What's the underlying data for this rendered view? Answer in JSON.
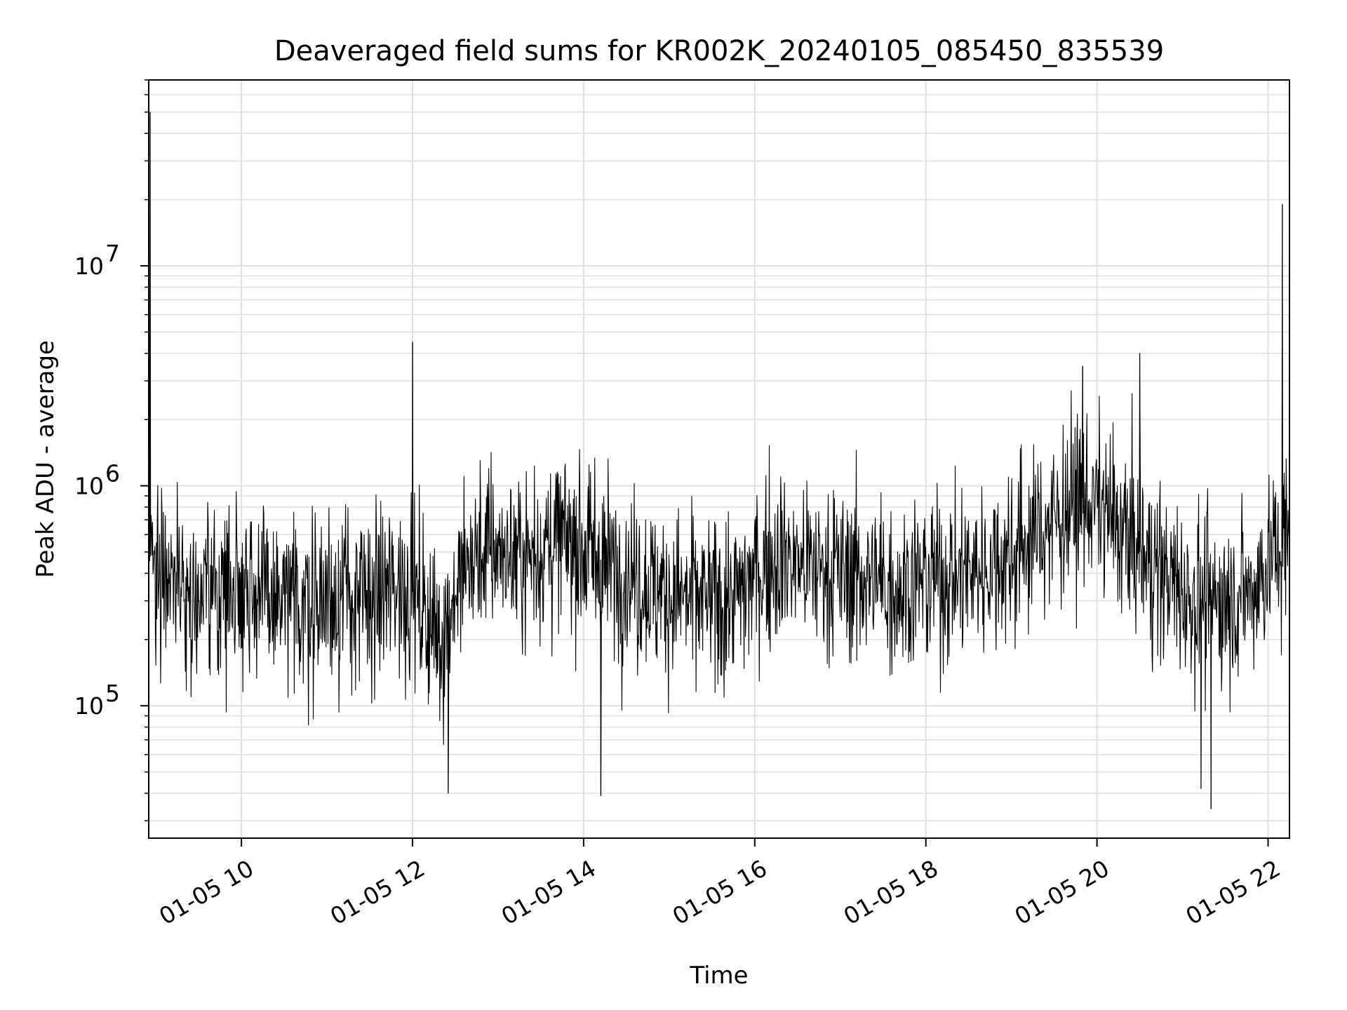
{
  "chart_data": {
    "type": "line",
    "title": "Deaveraged field sums for KR002K_20240105_085450_835539",
    "xlabel": "Time",
    "ylabel": "Peak ADU - average",
    "x_scale": "time",
    "y_scale": "log",
    "xlim": [
      "2024-01-05 08:55",
      "2024-01-05 22:15"
    ],
    "ylim": [
      25000,
      70000000
    ],
    "x_ticks": [
      "2024-01-05 10:00",
      "2024-01-05 12:00",
      "2024-01-05 14:00",
      "2024-01-05 16:00",
      "2024-01-05 18:00",
      "2024-01-05 20:00",
      "2024-01-05 22:00"
    ],
    "x_tick_labels": [
      "01-05 10",
      "01-05 12",
      "01-05 14",
      "01-05 16",
      "01-05 18",
      "01-05 20",
      "01-05 22"
    ],
    "y_ticks": [
      100000,
      1000000,
      10000000
    ],
    "y_tick_labels": [
      {
        "base": "10",
        "exp": "5"
      },
      {
        "base": "10",
        "exp": "6"
      },
      {
        "base": "10",
        "exp": "7"
      }
    ],
    "grid": true,
    "legend": "none",
    "line_color": "#000000",
    "grid_color": "#e0e0e0",
    "series": [
      {
        "x": [
          "2024-01-05 08:55",
          "2024-01-05 09:00",
          "2024-01-05 09:10",
          "2024-01-05 09:20",
          "2024-01-05 09:30",
          "2024-01-05 09:40",
          "2024-01-05 09:50",
          "2024-01-05 10:00",
          "2024-01-05 10:10",
          "2024-01-05 10:20",
          "2024-01-05 10:30",
          "2024-01-05 10:40",
          "2024-01-05 10:50",
          "2024-01-05 11:00",
          "2024-01-05 11:10",
          "2024-01-05 11:20",
          "2024-01-05 11:30",
          "2024-01-05 11:40",
          "2024-01-05 11:50",
          "2024-01-05 12:00",
          "2024-01-05 12:10",
          "2024-01-05 12:20",
          "2024-01-05 12:30",
          "2024-01-05 12:40",
          "2024-01-05 12:50",
          "2024-01-05 13:00",
          "2024-01-05 13:10",
          "2024-01-05 13:20",
          "2024-01-05 13:30",
          "2024-01-05 13:40",
          "2024-01-05 13:50",
          "2024-01-05 14:00",
          "2024-01-05 14:10",
          "2024-01-05 14:20",
          "2024-01-05 14:30",
          "2024-01-05 14:40",
          "2024-01-05 14:50",
          "2024-01-05 15:00",
          "2024-01-05 15:10",
          "2024-01-05 15:20",
          "2024-01-05 15:30",
          "2024-01-05 15:40",
          "2024-01-05 15:50",
          "2024-01-05 16:00",
          "2024-01-05 16:10",
          "2024-01-05 16:20",
          "2024-01-05 16:30",
          "2024-01-05 16:40",
          "2024-01-05 16:50",
          "2024-01-05 17:00",
          "2024-01-05 17:10",
          "2024-01-05 17:20",
          "2024-01-05 17:30",
          "2024-01-05 17:40",
          "2024-01-05 17:50",
          "2024-01-05 18:00",
          "2024-01-05 18:10",
          "2024-01-05 18:20",
          "2024-01-05 18:30",
          "2024-01-05 18:40",
          "2024-01-05 18:50",
          "2024-01-05 19:00",
          "2024-01-05 19:10",
          "2024-01-05 19:20",
          "2024-01-05 19:30",
          "2024-01-05 19:40",
          "2024-01-05 19:50",
          "2024-01-05 20:00",
          "2024-01-05 20:10",
          "2024-01-05 20:20",
          "2024-01-05 20:30",
          "2024-01-05 20:40",
          "2024-01-05 20:50",
          "2024-01-05 21:00",
          "2024-01-05 21:10",
          "2024-01-05 21:20",
          "2024-01-05 21:30",
          "2024-01-05 21:40",
          "2024-01-05 21:50",
          "2024-01-05 22:00",
          "2024-01-05 22:10",
          "2024-01-05 22:15"
        ],
        "y": [
          500000,
          450000,
          420000,
          350000,
          300000,
          330000,
          350000,
          380000,
          340000,
          300000,
          280000,
          290000,
          300000,
          310000,
          320000,
          300000,
          290000,
          330000,
          360000,
          330000,
          250000,
          200000,
          330000,
          450000,
          500000,
          520000,
          480000,
          470000,
          520000,
          550000,
          560000,
          520000,
          470000,
          430000,
          400000,
          370000,
          340000,
          320000,
          310000,
          300000,
          290000,
          300000,
          320000,
          400000,
          460000,
          480000,
          450000,
          430000,
          420000,
          400000,
          390000,
          380000,
          360000,
          350000,
          360000,
          370000,
          380000,
          390000,
          400000,
          420000,
          450000,
          500000,
          550000,
          620000,
          700000,
          800000,
          880000,
          820000,
          700000,
          600000,
          500000,
          430000,
          380000,
          330000,
          310000,
          300000,
          310000,
          320000,
          340000,
          450000,
          520000,
          550000
        ],
        "spikes": [
          {
            "x": "2024-01-05 08:56",
            "y": 50000000
          },
          {
            "x": "2024-01-05 12:00",
            "y": 4500000
          },
          {
            "x": "2024-01-05 19:50",
            "y": 3500000
          },
          {
            "x": "2024-01-05 20:30",
            "y": 4000000
          },
          {
            "x": "2024-01-05 22:10",
            "y": 19000000
          }
        ],
        "dips": [
          {
            "x": "2024-01-05 12:25",
            "y": 40000
          },
          {
            "x": "2024-01-05 14:12",
            "y": 39000
          },
          {
            "x": "2024-01-05 21:13",
            "y": 42000
          },
          {
            "x": "2024-01-05 21:20",
            "y": 34000
          }
        ]
      }
    ]
  }
}
